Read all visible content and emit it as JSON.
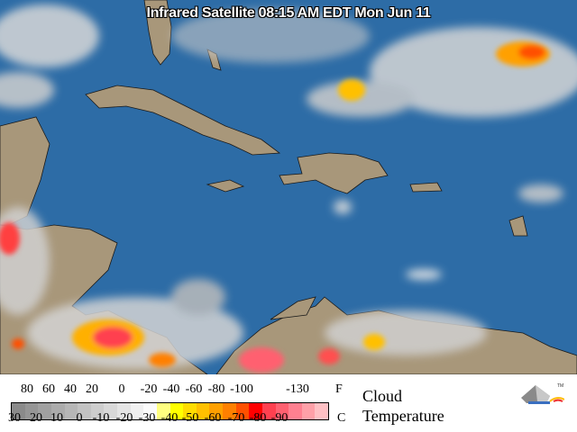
{
  "title": "Infrared Satellite 08:15 AM EDT Mon Jun 11",
  "colors": {
    "ocean": "#2d6ca6",
    "land": "#a8977a",
    "border": "#1a1a1a"
  },
  "legend": {
    "label_line1": "Cloud",
    "label_line2": "Temperature",
    "f_unit": "F",
    "c_unit": "C",
    "fahrenheit_ticks": [
      "80",
      "60",
      "40",
      "20",
      "0",
      "-20",
      "-40",
      "-60",
      "-80",
      "-100",
      "-130"
    ],
    "celsius_ticks": [
      "30",
      "20",
      "10",
      "0",
      "-10",
      "-20",
      "-30",
      "-40",
      "-50",
      "-60",
      "-70",
      "-80",
      "-90"
    ],
    "scale_colors": [
      "#8a8a8a",
      "#959595",
      "#a0a0a0",
      "#ababab",
      "#b6b6b6",
      "#c2c2c2",
      "#cdcdcd",
      "#d8d8d8",
      "#e4e4e4",
      "#f0f0f0",
      "#fbfbfb",
      "#ffff80",
      "#ffff00",
      "#ffdc00",
      "#ffc000",
      "#ffa000",
      "#ff8000",
      "#ff5000",
      "#ff0000",
      "#ff4050",
      "#ff6070",
      "#ff8090",
      "#ffa0a8",
      "#ffc0c4"
    ],
    "logo_icon": "weather-service-logo",
    "logo_mark": "TM"
  }
}
